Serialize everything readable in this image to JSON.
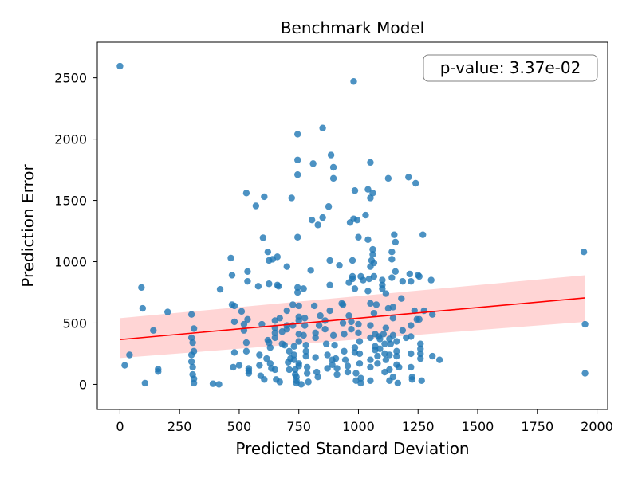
{
  "chart_data": {
    "type": "scatter",
    "title": "Benchmark Model",
    "xlabel": "Predicted Standard Deviation",
    "ylabel": "Prediction Error",
    "xlim": [
      -95,
      2045
    ],
    "ylim": [
      -205,
      2790
    ],
    "xticks": [
      0,
      250,
      500,
      750,
      1000,
      1250,
      1500,
      1750,
      2000
    ],
    "yticks": [
      0,
      500,
      1000,
      1500,
      2000,
      2500
    ],
    "annotation": "p-value: 3.37e-02",
    "annotation_position": "top-right",
    "grid": false,
    "colors": {
      "points": "#1f77b4",
      "fit_line": "#ff0000",
      "ci_band": "#ffb3b3"
    },
    "fit": {
      "x": [
        0,
        1950
      ],
      "y": [
        365,
        705
      ]
    },
    "ci_band": {
      "x": [
        0,
        1950
      ],
      "upper": [
        540,
        890
      ],
      "lower": [
        215,
        510
      ]
    },
    "points": [
      [
        0,
        2595
      ],
      [
        980,
        2470
      ],
      [
        20,
        155
      ],
      [
        40,
        240
      ],
      [
        90,
        790
      ],
      [
        95,
        620
      ],
      [
        105,
        10
      ],
      [
        140,
        440
      ],
      [
        160,
        125
      ],
      [
        160,
        105
      ],
      [
        200,
        590
      ],
      [
        300,
        570
      ],
      [
        300,
        380
      ],
      [
        300,
        240
      ],
      [
        300,
        185
      ],
      [
        305,
        140
      ],
      [
        305,
        80
      ],
      [
        310,
        45
      ],
      [
        310,
        10
      ],
      [
        305,
        340
      ],
      [
        310,
        455
      ],
      [
        310,
        270
      ],
      [
        390,
        5
      ],
      [
        415,
        0
      ],
      [
        420,
        775
      ],
      [
        465,
        1030
      ],
      [
        470,
        890
      ],
      [
        470,
        650
      ],
      [
        480,
        640
      ],
      [
        480,
        510
      ],
      [
        480,
        260
      ],
      [
        475,
        140
      ],
      [
        500,
        155
      ],
      [
        510,
        595
      ],
      [
        520,
        490
      ],
      [
        520,
        440
      ],
      [
        530,
        1560
      ],
      [
        535,
        920
      ],
      [
        535,
        840
      ],
      [
        535,
        530
      ],
      [
        530,
        340
      ],
      [
        530,
        270
      ],
      [
        540,
        130
      ],
      [
        540,
        110
      ],
      [
        540,
        90
      ],
      [
        570,
        1455
      ],
      [
        580,
        800
      ],
      [
        585,
        240
      ],
      [
        585,
        155
      ],
      [
        590,
        70
      ],
      [
        595,
        490
      ],
      [
        600,
        1195
      ],
      [
        605,
        1530
      ],
      [
        605,
        40
      ],
      [
        615,
        210
      ],
      [
        620,
        1080
      ],
      [
        625,
        1010
      ],
      [
        625,
        820
      ],
      [
        620,
        360
      ],
      [
        625,
        340
      ],
      [
        630,
        300
      ],
      [
        630,
        170
      ],
      [
        635,
        130
      ],
      [
        640,
        1020
      ],
      [
        650,
        520
      ],
      [
        650,
        460
      ],
      [
        650,
        420
      ],
      [
        650,
        380
      ],
      [
        650,
        120
      ],
      [
        655,
        40
      ],
      [
        660,
        1040
      ],
      [
        660,
        810
      ],
      [
        665,
        800
      ],
      [
        670,
        20
      ],
      [
        670,
        540
      ],
      [
        680,
        430
      ],
      [
        680,
        330
      ],
      [
        690,
        320
      ],
      [
        700,
        960
      ],
      [
        700,
        600
      ],
      [
        700,
        480
      ],
      [
        700,
        450
      ],
      [
        710,
        270
      ],
      [
        710,
        120
      ],
      [
        705,
        180
      ],
      [
        715,
        210
      ],
      [
        720,
        1520
      ],
      [
        725,
        650
      ],
      [
        725,
        480
      ],
      [
        730,
        310
      ],
      [
        730,
        240
      ],
      [
        730,
        200
      ],
      [
        735,
        120
      ],
      [
        735,
        80
      ],
      [
        740,
        60
      ],
      [
        740,
        30
      ],
      [
        740,
        10
      ],
      [
        745,
        2040
      ],
      [
        745,
        1830
      ],
      [
        745,
        1710
      ],
      [
        745,
        1200
      ],
      [
        745,
        790
      ],
      [
        745,
        750
      ],
      [
        750,
        640
      ],
      [
        750,
        550
      ],
      [
        750,
        520
      ],
      [
        750,
        410
      ],
      [
        750,
        350
      ],
      [
        750,
        170
      ],
      [
        750,
        150
      ],
      [
        760,
        0
      ],
      [
        770,
        780
      ],
      [
        770,
        400
      ],
      [
        775,
        540
      ],
      [
        775,
        480
      ],
      [
        780,
        320
      ],
      [
        780,
        270
      ],
      [
        780,
        230
      ],
      [
        785,
        140
      ],
      [
        785,
        90
      ],
      [
        790,
        20
      ],
      [
        800,
        930
      ],
      [
        805,
        1340
      ],
      [
        810,
        1800
      ],
      [
        815,
        640
      ],
      [
        820,
        420
      ],
      [
        820,
        380
      ],
      [
        820,
        220
      ],
      [
        825,
        100
      ],
      [
        830,
        60
      ],
      [
        830,
        1300
      ],
      [
        835,
        480
      ],
      [
        840,
        560
      ],
      [
        850,
        2090
      ],
      [
        850,
        1360
      ],
      [
        860,
        520
      ],
      [
        860,
        450
      ],
      [
        865,
        330
      ],
      [
        870,
        240
      ],
      [
        870,
        130
      ],
      [
        875,
        1450
      ],
      [
        880,
        1010
      ],
      [
        880,
        810
      ],
      [
        880,
        600
      ],
      [
        885,
        1870
      ],
      [
        890,
        200
      ],
      [
        890,
        160
      ],
      [
        895,
        1770
      ],
      [
        895,
        1680
      ],
      [
        895,
        400
      ],
      [
        900,
        320
      ],
      [
        905,
        210
      ],
      [
        910,
        130
      ],
      [
        910,
        80
      ],
      [
        920,
        970
      ],
      [
        930,
        660
      ],
      [
        935,
        650
      ],
      [
        935,
        500
      ],
      [
        940,
        410
      ],
      [
        940,
        270
      ],
      [
        945,
        200
      ],
      [
        955,
        150
      ],
      [
        955,
        100
      ],
      [
        960,
        830
      ],
      [
        960,
        560
      ],
      [
        965,
        1320
      ],
      [
        970,
        510
      ],
      [
        970,
        450
      ],
      [
        975,
        1010
      ],
      [
        975,
        880
      ],
      [
        975,
        860
      ],
      [
        980,
        1350
      ],
      [
        985,
        1580
      ],
      [
        985,
        780
      ],
      [
        985,
        300
      ],
      [
        985,
        260
      ],
      [
        990,
        90
      ],
      [
        990,
        30
      ],
      [
        995,
        1340
      ],
      [
        1000,
        1200
      ],
      [
        1000,
        490
      ],
      [
        1000,
        420
      ],
      [
        1005,
        350
      ],
      [
        1005,
        250
      ],
      [
        1005,
        170
      ],
      [
        1010,
        50
      ],
      [
        1010,
        10
      ],
      [
        1010,
        880
      ],
      [
        1020,
        850
      ],
      [
        1030,
        1380
      ],
      [
        1040,
        1590
      ],
      [
        1040,
        1180
      ],
      [
        1040,
        760
      ],
      [
        1045,
        860
      ],
      [
        1050,
        1810
      ],
      [
        1050,
        1520
      ],
      [
        1050,
        960
      ],
      [
        1050,
        660
      ],
      [
        1050,
        480
      ],
      [
        1050,
        380
      ],
      [
        1050,
        200
      ],
      [
        1050,
        140
      ],
      [
        1050,
        30
      ],
      [
        1055,
        1010
      ],
      [
        1060,
        1560
      ],
      [
        1060,
        1100
      ],
      [
        1060,
        1060
      ],
      [
        1065,
        990
      ],
      [
        1065,
        880
      ],
      [
        1065,
        580
      ],
      [
        1070,
        410
      ],
      [
        1070,
        310
      ],
      [
        1070,
        280
      ],
      [
        1075,
        650
      ],
      [
        1080,
        230
      ],
      [
        1080,
        170
      ],
      [
        1085,
        390
      ],
      [
        1090,
        370
      ],
      [
        1090,
        290
      ],
      [
        1100,
        850
      ],
      [
        1100,
        810
      ],
      [
        1100,
        780
      ],
      [
        1105,
        410
      ],
      [
        1110,
        330
      ],
      [
        1110,
        250
      ],
      [
        1110,
        100
      ],
      [
        1115,
        740
      ],
      [
        1115,
        460
      ],
      [
        1115,
        200
      ],
      [
        1125,
        1680
      ],
      [
        1125,
        620
      ],
      [
        1130,
        370
      ],
      [
        1130,
        240
      ],
      [
        1130,
        120
      ],
      [
        1130,
        30
      ],
      [
        1135,
        330
      ],
      [
        1140,
        1080
      ],
      [
        1140,
        1020
      ],
      [
        1140,
        870
      ],
      [
        1145,
        630
      ],
      [
        1145,
        540
      ],
      [
        1145,
        400
      ],
      [
        1145,
        60
      ],
      [
        1150,
        1220
      ],
      [
        1155,
        1160
      ],
      [
        1155,
        920
      ],
      [
        1160,
        350
      ],
      [
        1160,
        270
      ],
      [
        1160,
        230
      ],
      [
        1160,
        160
      ],
      [
        1165,
        10
      ],
      [
        1170,
        140
      ],
      [
        1180,
        700
      ],
      [
        1185,
        840
      ],
      [
        1185,
        440
      ],
      [
        1200,
        380
      ],
      [
        1210,
        1690
      ],
      [
        1215,
        900
      ],
      [
        1220,
        840
      ],
      [
        1220,
        480
      ],
      [
        1220,
        390
      ],
      [
        1220,
        250
      ],
      [
        1220,
        140
      ],
      [
        1225,
        60
      ],
      [
        1225,
        40
      ],
      [
        1235,
        600
      ],
      [
        1240,
        1640
      ],
      [
        1245,
        530
      ],
      [
        1250,
        890
      ],
      [
        1255,
        880
      ],
      [
        1255,
        530
      ],
      [
        1260,
        330
      ],
      [
        1260,
        290
      ],
      [
        1260,
        250
      ],
      [
        1260,
        210
      ],
      [
        1265,
        30
      ],
      [
        1270,
        1220
      ],
      [
        1275,
        600
      ],
      [
        1305,
        850
      ],
      [
        1310,
        230
      ],
      [
        1310,
        570
      ],
      [
        1340,
        200
      ],
      [
        1945,
        1080
      ],
      [
        1950,
        490
      ],
      [
        1950,
        90
      ]
    ]
  }
}
